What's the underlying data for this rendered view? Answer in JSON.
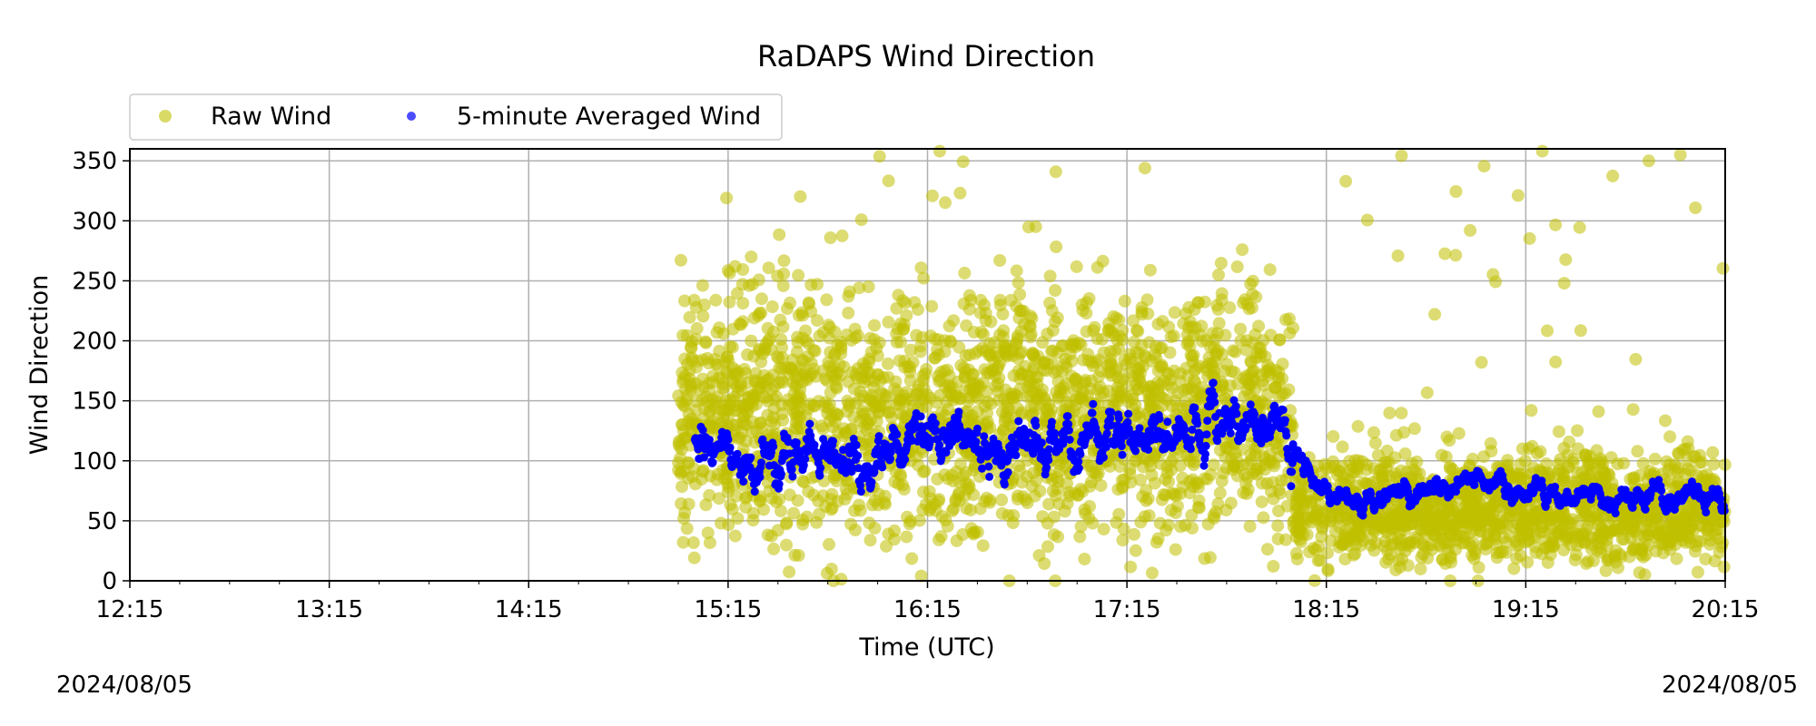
{
  "chart_data": {
    "type": "scatter",
    "title": "RaDAPS Wind Direction",
    "xlabel": "Time (UTC)",
    "ylabel": "Wind Direction",
    "ylim": [
      0,
      360
    ],
    "xlim": [
      "12:15",
      "20:15"
    ],
    "x_ticks": [
      "12:15",
      "13:15",
      "14:15",
      "15:15",
      "16:15",
      "17:15",
      "18:15",
      "19:15",
      "20:15"
    ],
    "y_ticks": [
      0,
      50,
      100,
      150,
      200,
      250,
      300,
      350
    ],
    "grid": true,
    "legend_placement": "top-left",
    "start_date": "2024/08/05",
    "end_date": "2024/08/05",
    "series": [
      {
        "name": "Raw Wind",
        "color": "#bfbf00",
        "marker": "circle",
        "segments": [
          {
            "start": "15:00",
            "end": "18:05",
            "center": 140,
            "spread": 110
          },
          {
            "start": "18:05",
            "end": "20:15",
            "center": 60,
            "spread": 50
          }
        ]
      },
      {
        "name": "5-minute Averaged Wind",
        "color": "#0000ff",
        "marker": "circle",
        "x": [
          "15:00",
          "15:15",
          "15:30",
          "15:45",
          "16:00",
          "16:15",
          "16:30",
          "16:45",
          "17:00",
          "17:15",
          "17:30",
          "17:45",
          "18:00",
          "18:10",
          "18:25",
          "18:40",
          "19:00",
          "19:20",
          "19:40",
          "20:00",
          "20:15"
        ],
        "y": [
          130,
          100,
          110,
          105,
          100,
          125,
          115,
          115,
          115,
          120,
          130,
          120,
          140,
          85,
          68,
          70,
          85,
          70,
          70,
          70,
          65
        ]
      }
    ]
  }
}
